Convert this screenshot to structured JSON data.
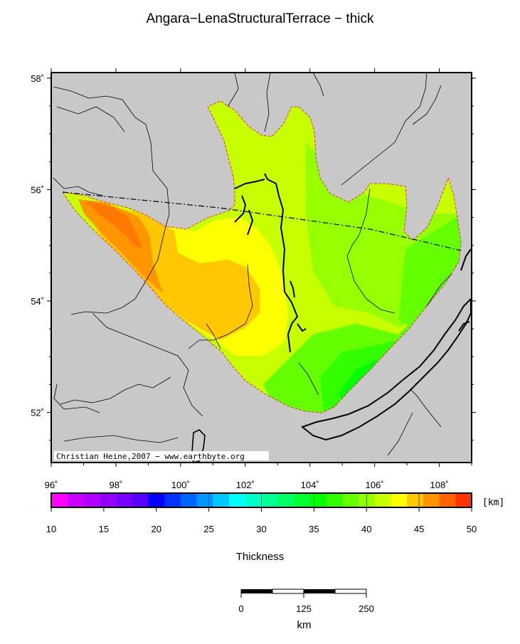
{
  "title": "Angara−LenaStructuralTerrace − thick",
  "map": {
    "lon_range": [
      96,
      109
    ],
    "lat_range": [
      51.1,
      58.1
    ],
    "lon_ticks": [
      {
        "value": 96,
        "label": "96˚"
      },
      {
        "value": 98,
        "label": "98˚"
      },
      {
        "value": 100,
        "label": "100˚"
      },
      {
        "value": 102,
        "label": "102˚"
      },
      {
        "value": 104,
        "label": "104˚"
      },
      {
        "value": 106,
        "label": "106˚"
      },
      {
        "value": 108,
        "label": "108˚"
      }
    ],
    "lat_ticks": [
      {
        "value": 52,
        "label": "52˚"
      },
      {
        "value": 54,
        "label": "54˚"
      },
      {
        "value": 56,
        "label": "56˚"
      },
      {
        "value": 58,
        "label": "58˚"
      }
    ],
    "credit": "Christian Heine,2007 − www.earthbyte.org",
    "land_color": "#c8c8c8"
  },
  "colorbar": {
    "min": 10,
    "max": 50,
    "unit_label": "[km]",
    "tick_labels": [
      "10",
      "15",
      "20",
      "25",
      "30",
      "35",
      "40",
      "45",
      "50"
    ],
    "colors": [
      "#ff00ff",
      "#c800ff",
      "#b000ff",
      "#9600ff",
      "#7800ff",
      "#5a00ff",
      "#0000ff",
      "#0032ff",
      "#0064ff",
      "#0096ff",
      "#00c8ff",
      "#00ffff",
      "#00ffc8",
      "#00ff96",
      "#00ff64",
      "#00ff32",
      "#00ff00",
      "#32ff00",
      "#64ff00",
      "#96ff00",
      "#c8ff00",
      "#ffff00",
      "#ffc800",
      "#ff9600",
      "#ff6400",
      "#ff3200"
    ],
    "title": "Thickness"
  },
  "scalebar": {
    "labels": [
      "0",
      "125",
      "250"
    ],
    "unit": "km"
  }
}
